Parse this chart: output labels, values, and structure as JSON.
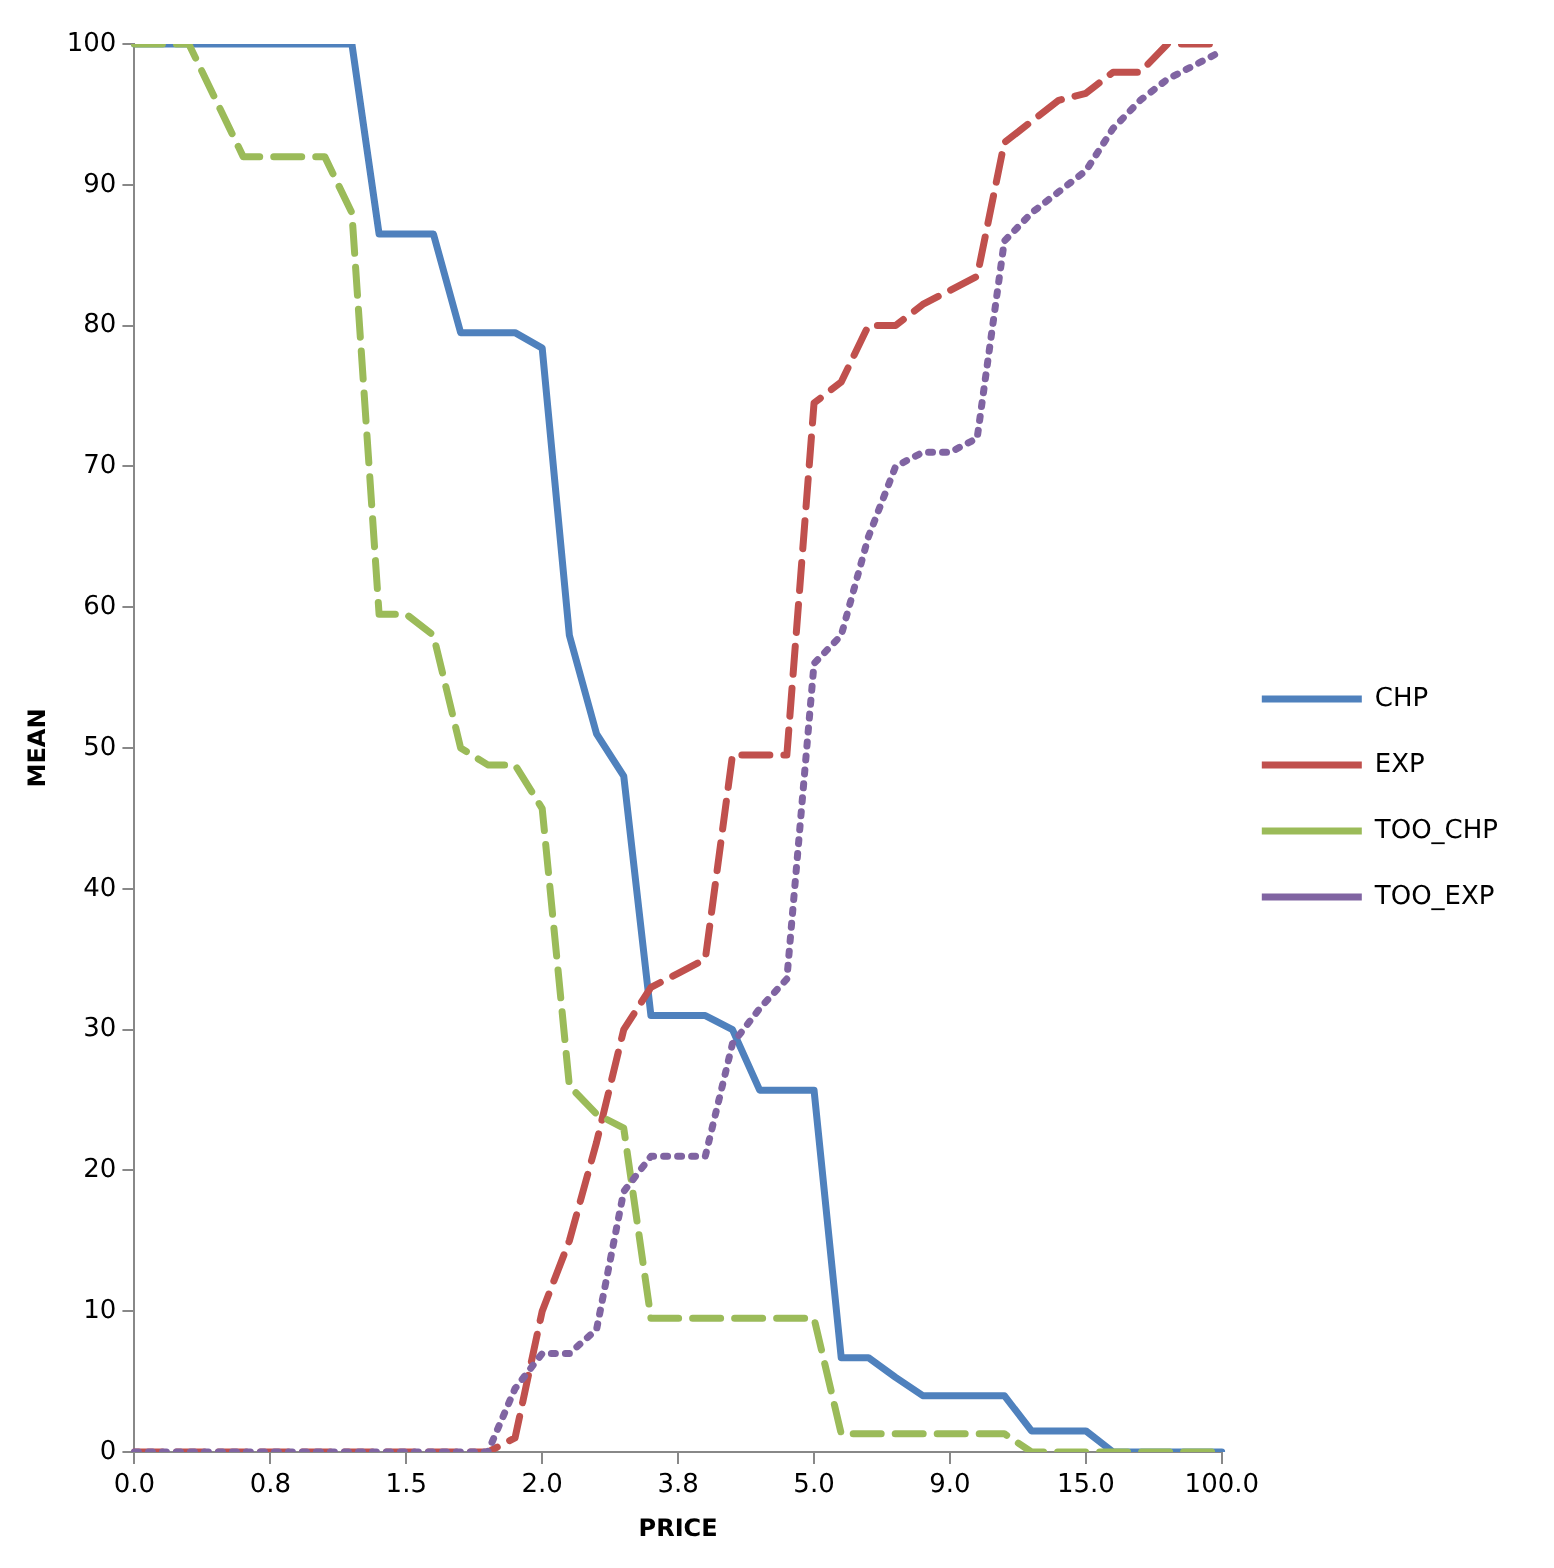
{
  "chart_data": {
    "type": "line",
    "xlabel": "PRICE",
    "ylabel": "MEAN",
    "categories": [
      "0.0",
      null,
      null,
      null,
      null,
      "0.8",
      null,
      null,
      null,
      null,
      "1.5",
      null,
      null,
      null,
      null,
      "2.0",
      null,
      null,
      null,
      null,
      "3.8",
      null,
      null,
      null,
      null,
      "5.0",
      null,
      null,
      null,
      null,
      "9.0",
      null,
      null,
      null,
      null,
      "15.0",
      null,
      null,
      null,
      null,
      "100.0"
    ],
    "series": [
      {
        "name": "CHP",
        "color": "#4f81bd",
        "line_style": "solid",
        "values": [
          100,
          100,
          100,
          100,
          100,
          100,
          100,
          100,
          100,
          86.5,
          86.5,
          86.5,
          79.5,
          79.5,
          79.5,
          78.4,
          58,
          51,
          48,
          31,
          31,
          31,
          30,
          25.7,
          25.7,
          25.7,
          6.7,
          6.7,
          5.3,
          4,
          4,
          4,
          4,
          1.5,
          1.5,
          1.5,
          0,
          0,
          0,
          0,
          0
        ]
      },
      {
        "name": "EXP",
        "color": "#c0504d",
        "line_style": "dashed",
        "values": [
          0,
          0,
          0,
          0,
          0,
          0,
          0,
          0,
          0,
          0,
          0,
          0,
          0,
          0,
          1,
          10,
          15,
          22,
          30,
          33,
          34,
          35,
          49.5,
          49.5,
          49.5,
          74.5,
          76,
          80,
          80,
          81.5,
          82.5,
          83.5,
          93,
          94.5,
          96,
          96.5,
          98,
          98,
          100,
          100,
          100
        ]
      },
      {
        "name": "TOO_CHP",
        "color": "#9bbb59",
        "line_style": "dashed",
        "values": [
          100,
          100,
          100,
          96,
          92,
          92,
          92,
          92,
          88,
          59.5,
          59.5,
          58,
          50,
          48.8,
          48.8,
          45.7,
          26,
          24,
          23,
          9.5,
          9.5,
          9.5,
          9.5,
          9.5,
          9.5,
          9.5,
          1.3,
          1.3,
          1.3,
          1.3,
          1.3,
          1.3,
          1.3,
          0,
          0,
          0,
          0,
          0,
          0,
          0,
          0
        ]
      },
      {
        "name": "TOO_EXP",
        "color": "#8064a2",
        "line_style": "dotted",
        "values": [
          0,
          0,
          0,
          0,
          0,
          0,
          0,
          0,
          0,
          0,
          0,
          0,
          0,
          0,
          4.5,
          7,
          7,
          8.7,
          18.5,
          21,
          21,
          21,
          29,
          31.5,
          33.6,
          56,
          58,
          65,
          70,
          71,
          71,
          72,
          86,
          88,
          89.5,
          91,
          94,
          96,
          97.5,
          98.5,
          99.5
        ]
      }
    ],
    "ylim": [
      0,
      100
    ],
    "yticks": [
      0,
      10,
      20,
      30,
      40,
      50,
      60,
      70,
      80,
      90,
      100
    ],
    "grid": false,
    "legend": "right",
    "marker": "none"
  }
}
